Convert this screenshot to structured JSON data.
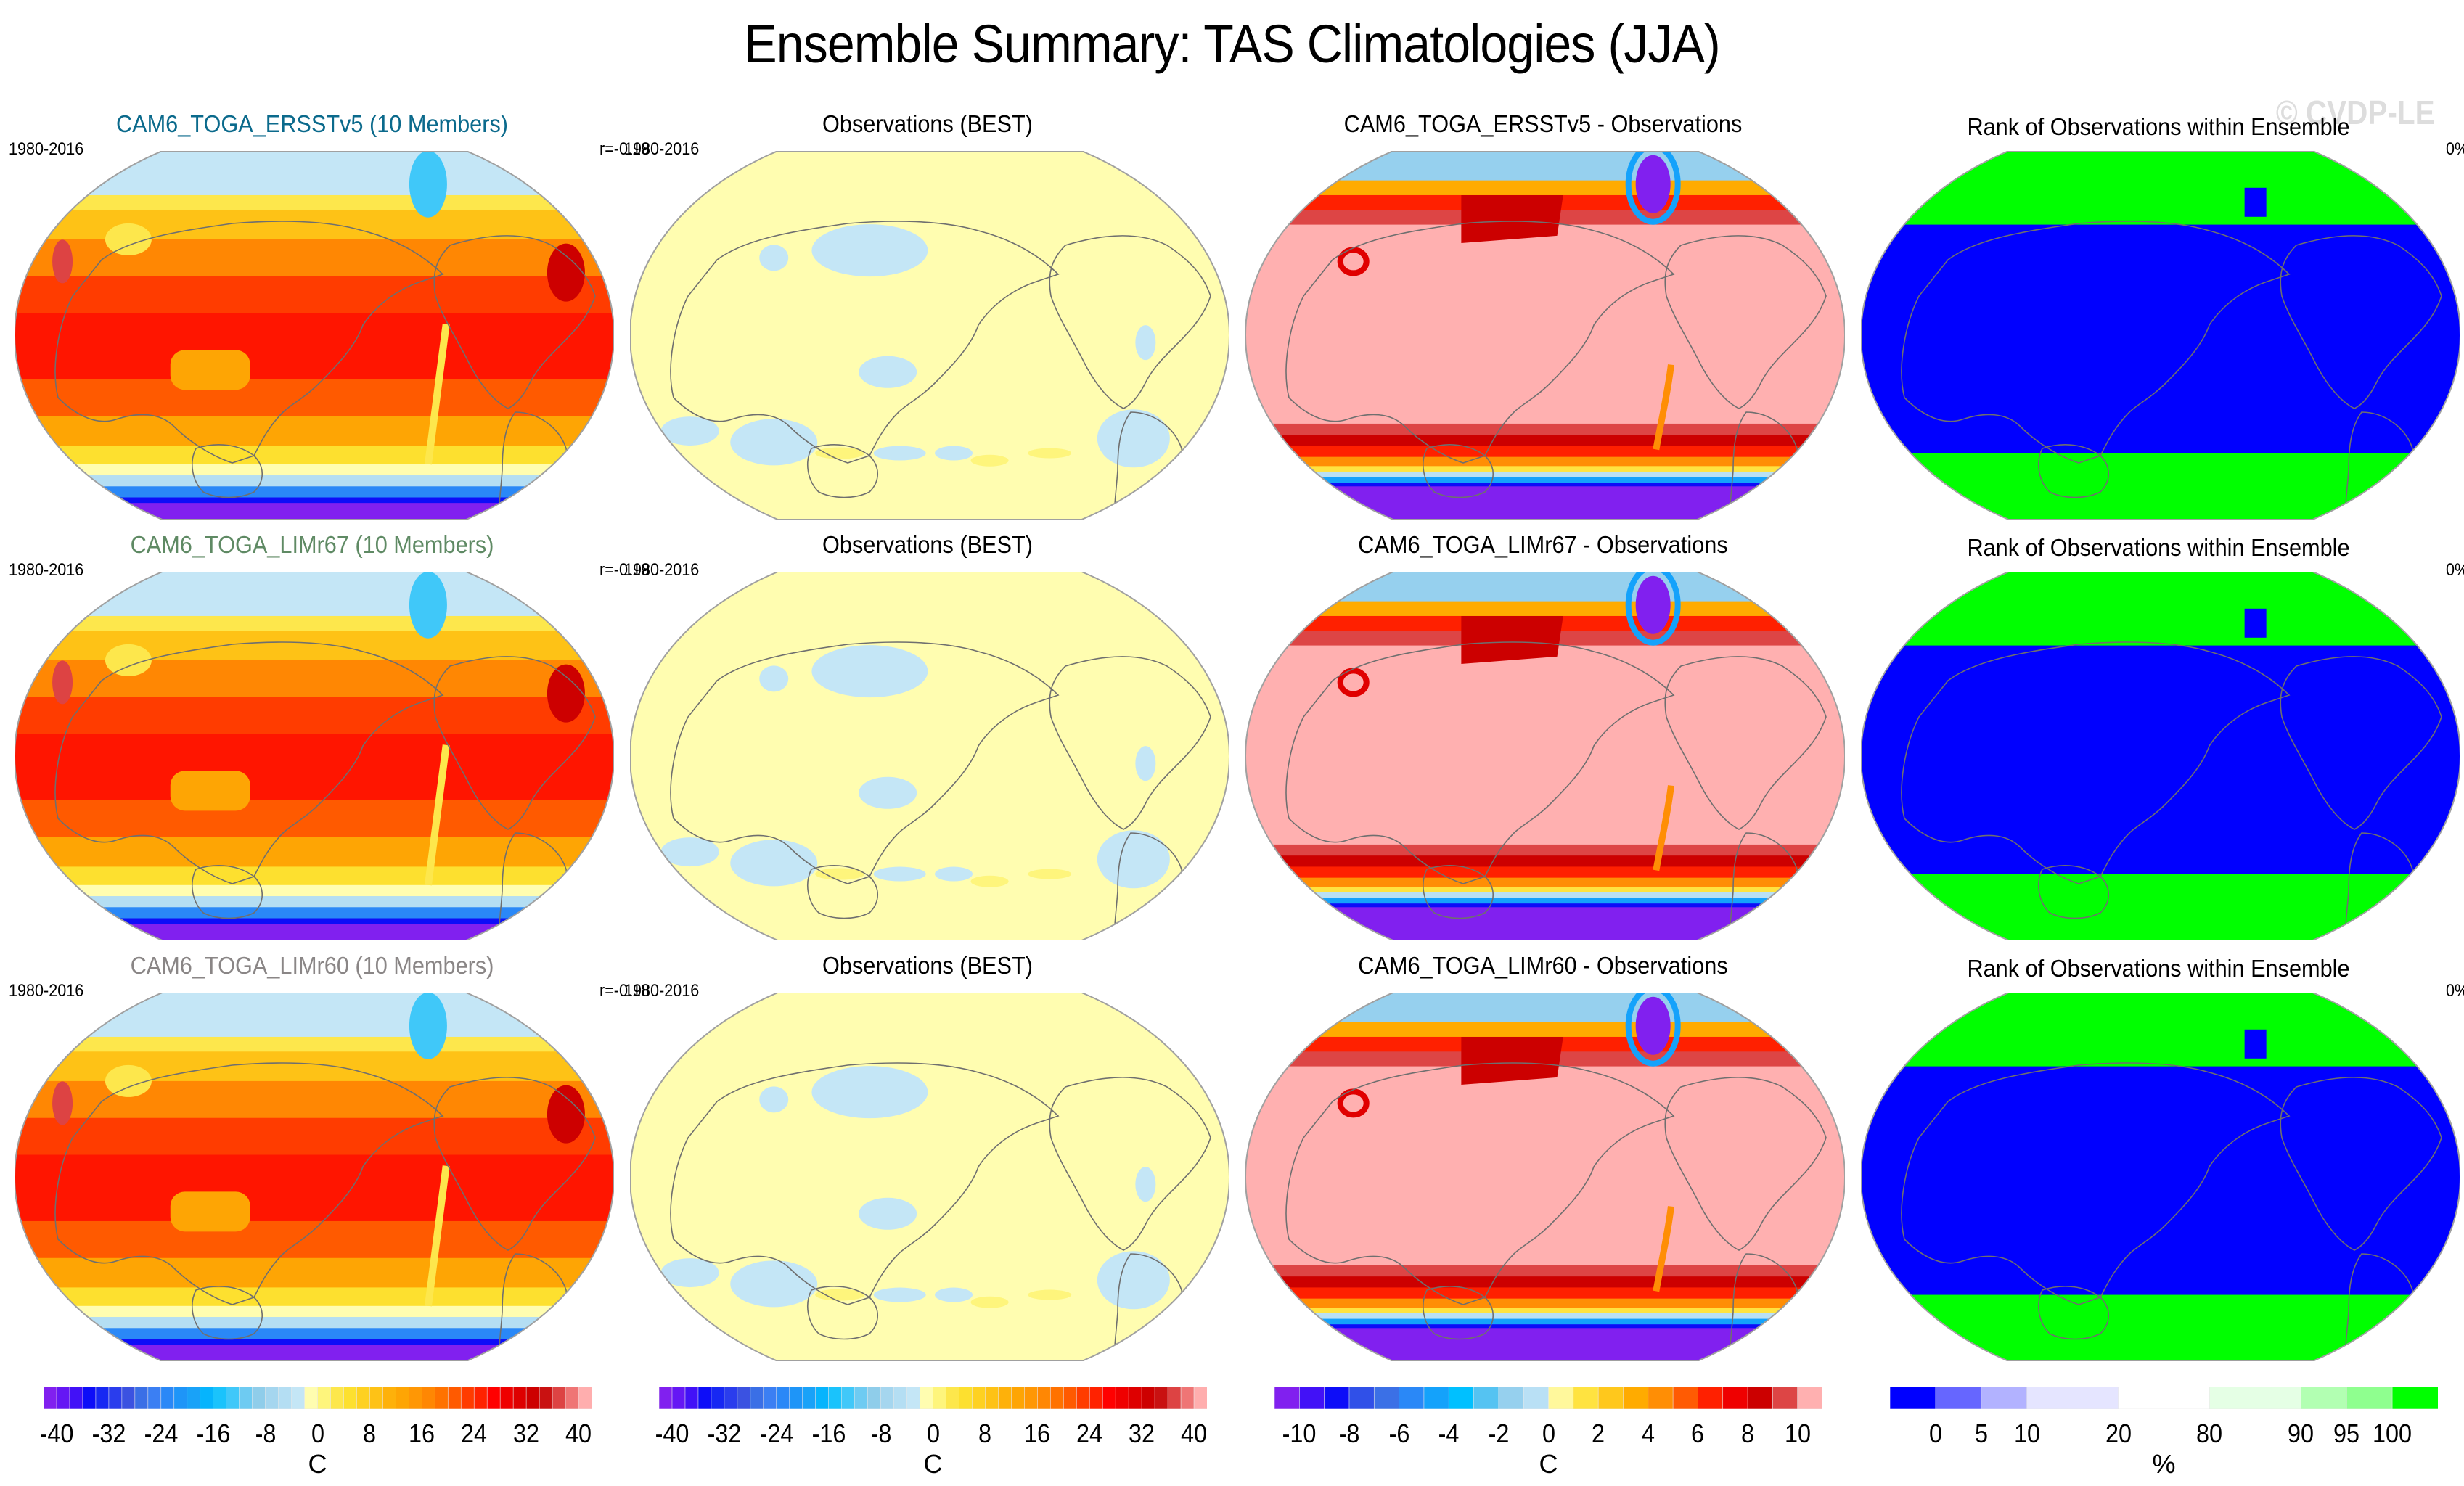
{
  "page": {
    "title": "Ensemble Summary: TAS Climatologies (JJA)",
    "watermark": "© CVDP-LE"
  },
  "rows": [
    {
      "model": "CAM6_TOGA_ERSST v5",
      "model_title": "CAM6_TOGA_ERSSTv5 (10 Members)",
      "model_title_color": "#0b6a8c",
      "model_period": "1980-2016",
      "pattern_correlation": "r=-0.19",
      "obs_title": "Observations (BEST)",
      "obs_period": "1980-2016",
      "diff_title": "CAM6_TOGA_ERSSTv5 - Observations",
      "rank_title": "Rank of Observations within Ensemble",
      "rank_percent": "0%"
    },
    {
      "model": "CAM6_TOGA_LIMr67",
      "model_title": "CAM6_TOGA_LIMr67 (10 Members)",
      "model_title_color": "#5f8a64",
      "model_period": "1980-2016",
      "pattern_correlation": "r=-0.19",
      "obs_title": "Observations (BEST)",
      "obs_period": "1980-2016",
      "diff_title": "CAM6_TOGA_LIMr67 - Observations",
      "rank_title": "Rank of Observations within Ensemble",
      "rank_percent": "0%"
    },
    {
      "model": "CAM6_TOGA_LIMr60",
      "model_title": "CAM6_TOGA_LIMr60 (10 Members)",
      "model_title_color": "#8a8686",
      "model_period": "1980-2016",
      "pattern_correlation": "r=-0.18",
      "obs_title": "Observations (BEST)",
      "obs_period": "1980-2016",
      "diff_title": "CAM6_TOGA_LIMr60 - Observations",
      "rank_title": "Rank of Observations within Ensemble",
      "rank_percent": "0%"
    }
  ],
  "chart_data": [
    {
      "type": "heatmap",
      "name": "model-climatology-colorbar",
      "unit": "C",
      "range": [
        -40,
        40
      ],
      "tick_labels": [
        "-40",
        "-32",
        "-24",
        "-16",
        "-8",
        "0",
        "8",
        "16",
        "24",
        "32",
        "40"
      ],
      "colors": [
        "#8120ef",
        "#6517f4",
        "#4211f7",
        "#0d0df8",
        "#1728f3",
        "#2a3ded",
        "#3b52e1",
        "#3a6fe6",
        "#3b7ff3",
        "#2a88f7",
        "#1e95f8",
        "#19a2f8",
        "#06b4fd",
        "#1ac3fc",
        "#40c8f9",
        "#6ecbf2",
        "#8fcdea",
        "#a5d6ef",
        "#b4def3",
        "#c4e6f6",
        "#fffdb0",
        "#fef57c",
        "#fde74c",
        "#fde02f",
        "#fed121",
        "#fec216",
        "#feb10a",
        "#fea504",
        "#ff9705",
        "#ff8703",
        "#ff7200",
        "#ff5a00",
        "#ff3c00",
        "#ff2200",
        "#ff0000",
        "#ef0000",
        "#de0000",
        "#cd0000",
        "#c91111",
        "#dd4343",
        "#ef7575",
        "#ffaeae"
      ]
    },
    {
      "type": "heatmap",
      "name": "observations-colorbar",
      "unit": "C",
      "range": [
        -40,
        40
      ],
      "tick_labels": [
        "-40",
        "-32",
        "-24",
        "-16",
        "-8",
        "0",
        "8",
        "16",
        "24",
        "32",
        "40"
      ],
      "colors": [
        "#8120ef",
        "#6517f4",
        "#4211f7",
        "#0d0df8",
        "#1728f3",
        "#2a3ded",
        "#3b52e1",
        "#3a6fe6",
        "#3b7ff3",
        "#2a88f7",
        "#1e95f8",
        "#19a2f8",
        "#06b4fd",
        "#1ac3fc",
        "#40c8f9",
        "#6ecbf2",
        "#8fcdea",
        "#a5d6ef",
        "#b4def3",
        "#c4e6f6",
        "#fffdb0",
        "#fef57c",
        "#fde74c",
        "#fde02f",
        "#fed121",
        "#fec216",
        "#feb10a",
        "#fea504",
        "#ff9705",
        "#ff8703",
        "#ff7200",
        "#ff5a00",
        "#ff3c00",
        "#ff2200",
        "#ff0000",
        "#ef0000",
        "#de0000",
        "#cd0000",
        "#c91111",
        "#dd4343",
        "#ef7575",
        "#ffaeae"
      ]
    },
    {
      "type": "heatmap",
      "name": "difference-colorbar",
      "unit": "C",
      "range": [
        -10,
        10
      ],
      "tick_labels": [
        "-10",
        "-8",
        "-6",
        "-4",
        "-2",
        "0",
        "2",
        "4",
        "6",
        "8",
        "10"
      ],
      "colors": [
        "#8120ef",
        "#4211f7",
        "#0d0df8",
        "#3050e8",
        "#3b70e6",
        "#2a88f7",
        "#14a2fb",
        "#00c0ff",
        "#55c3f2",
        "#96d0ee",
        "#b9e0f5",
        "#fff89c",
        "#ffe340",
        "#ffc81c",
        "#ffab00",
        "#ff8e05",
        "#ff5b03",
        "#ff2000",
        "#ef0000",
        "#cc0000",
        "#dd4545",
        "#ffb0b0"
      ]
    },
    {
      "type": "heatmap",
      "name": "rank-colorbar",
      "unit": "%",
      "bounds": [
        0,
        5,
        10,
        20,
        80,
        90,
        95,
        100
      ],
      "tick_labels": [
        "0",
        "5",
        "10",
        "20",
        "80",
        "90",
        "95",
        "100"
      ],
      "colors": [
        "#0000ff",
        "#6666ff",
        "#b2b2ff",
        "#e5e5ff",
        "#ffffff",
        "#e5ffe5",
        "#b2ffb2",
        "#8fff8f",
        "#00ff00"
      ]
    }
  ]
}
